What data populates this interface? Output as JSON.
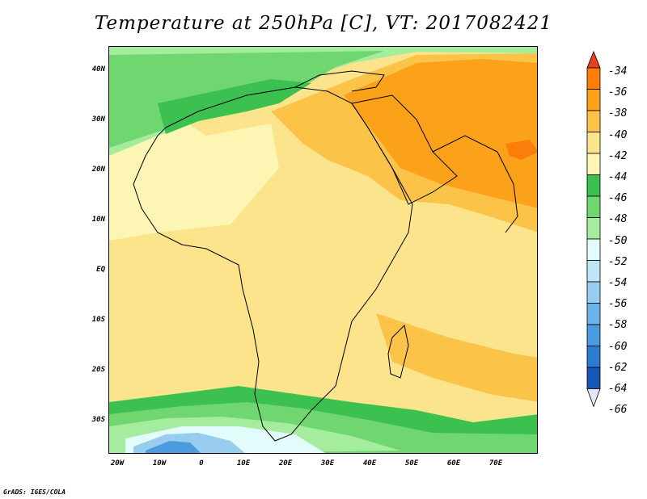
{
  "title": "Temperature at 250hPa [C], VT: 2017082421",
  "credit": "GrADS: IGES/COLA",
  "lat_labels": [
    "40N",
    "30N",
    "20N",
    "10N",
    "EQ",
    "10S",
    "20S",
    "30S"
  ],
  "lon_labels": [
    "20W",
    "10W",
    "0",
    "10E",
    "20E",
    "30E",
    "40E",
    "50E",
    "60E",
    "70E"
  ],
  "colorbar": {
    "labels": [
      "-34",
      "-36",
      "-38",
      "-40",
      "-42",
      "-44",
      "-46",
      "-48",
      "-50",
      "-52",
      "-54",
      "-56",
      "-58",
      "-60",
      "-62",
      "-64",
      "-66"
    ],
    "colors": [
      "#e8401c",
      "#fb7d0a",
      "#fba21a",
      "#fbc347",
      "#fce48c",
      "#fdf5b4",
      "#3cc050",
      "#6fd670",
      "#a5ec9f",
      "#e2fcfc",
      "#bfe6f7",
      "#98cdf0",
      "#6ab4e8",
      "#4d9bdf",
      "#2b7bd1",
      "#1656b4",
      "#112a8a"
    ]
  }
}
